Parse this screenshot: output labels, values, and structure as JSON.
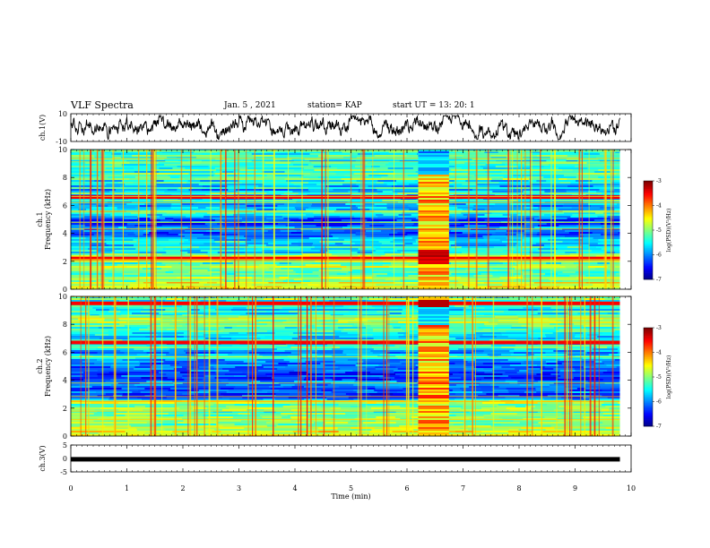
{
  "header": {
    "title": "VLF Spectra",
    "date": "Jan. 5 , 2021",
    "station": "station= KAP",
    "start": "start UT = 13: 20: 1"
  },
  "chart_data": [
    {
      "type": "line",
      "panel": "ch1-waveform",
      "ylabel": "ch.1(V)",
      "ylim": [
        -10,
        10
      ],
      "yticks": [
        "10",
        "-10"
      ],
      "xlim": [
        0,
        10
      ],
      "x_span_min": [
        0,
        9.8
      ],
      "description_values_V": "continuous noisy waveform mostly between -8 and +8 V"
    },
    {
      "type": "heatmap",
      "panel": "ch1-spectrogram",
      "ylabel": "ch.1",
      "ylabel2": "Frequency (kHz)",
      "ylim": [
        0,
        10
      ],
      "yticks": [
        "0",
        "2",
        "4",
        "6",
        "8",
        "10"
      ],
      "xlim": [
        0,
        10
      ],
      "x_span_min": [
        0,
        9.8
      ],
      "burst_interval_min": [
        6.2,
        6.75
      ],
      "strong_lines_kHz": [
        6.6,
        2.2
      ],
      "colorbar": {
        "label": "log(PSD)(V²/Hz)",
        "ticks": [
          "-3",
          "-4",
          "-5",
          "-6",
          "-7"
        ],
        "range": [
          -7,
          -3
        ]
      }
    },
    {
      "type": "heatmap",
      "panel": "ch2-spectrogram",
      "ylabel": "ch.2",
      "ylabel2": "Frequency (kHz)",
      "ylim": [
        0,
        10
      ],
      "yticks": [
        "0",
        "2",
        "4",
        "6",
        "8",
        "10"
      ],
      "xlim": [
        0,
        10
      ],
      "x_span_min": [
        0,
        9.8
      ],
      "burst_interval_min": [
        6.2,
        6.75
      ],
      "strong_lines_kHz": [
        9.5,
        6.7
      ],
      "colorbar": {
        "label": "log(PSD)(V²/Hz)",
        "ticks": [
          "-3",
          "-4",
          "-5",
          "-6",
          "-7"
        ],
        "range": [
          -7,
          -3
        ]
      }
    },
    {
      "type": "line",
      "panel": "ch3-waveform",
      "ylabel": "ch.3(V)",
      "ylim": [
        -5,
        5
      ],
      "yticks": [
        "5",
        "0",
        "-5"
      ],
      "xlim": [
        0,
        10
      ],
      "x_span_min": [
        0,
        9.8
      ],
      "value_V": -0.3,
      "xlabel": "Time (min)",
      "xticks": [
        "0",
        "1",
        "2",
        "3",
        "4",
        "5",
        "6",
        "7",
        "8",
        "9",
        "10"
      ]
    }
  ]
}
